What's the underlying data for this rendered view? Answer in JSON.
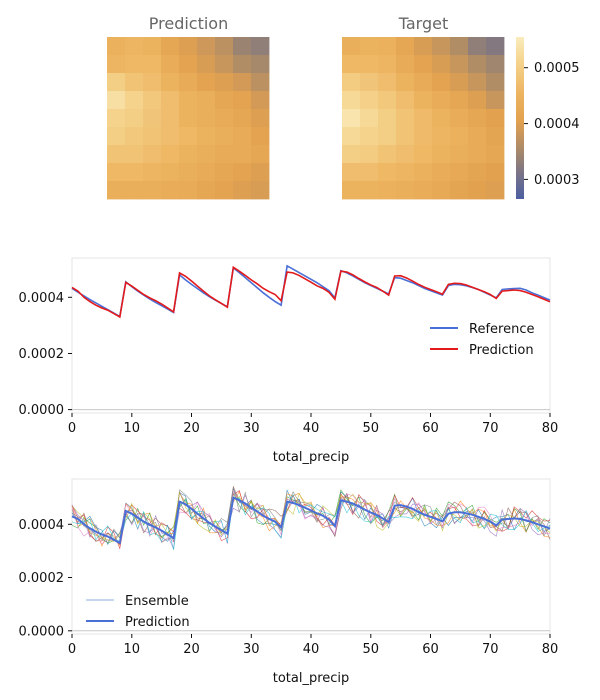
{
  "colors": {
    "reference": "#4a6fd6",
    "prediction_line": "#e31a1c",
    "ensemble_prediction": "#4a6fd6",
    "frame": "#dddddd"
  },
  "chart_data": [
    {
      "type": "heatmap",
      "title": "Prediction",
      "grid": [
        [
          0.000445,
          0.000455,
          0.00045,
          0.00042,
          0.0004,
          0.000385,
          0.00037,
          0.00034,
          0.00033
        ],
        [
          0.000455,
          0.00046,
          0.00046,
          0.000435,
          0.00041,
          0.000395,
          0.00038,
          0.00036,
          0.00035
        ],
        [
          0.0005,
          0.00048,
          0.00047,
          0.00045,
          0.00043,
          0.00041,
          0.0004,
          0.00039,
          0.00037
        ],
        [
          0.00053,
          0.00051,
          0.00049,
          0.00047,
          0.00045,
          0.00044,
          0.00042,
          0.00041,
          0.00039
        ],
        [
          0.00051,
          0.0005,
          0.000485,
          0.00047,
          0.00045,
          0.00044,
          0.00043,
          0.00042,
          0.0004
        ],
        [
          0.0005,
          0.00049,
          0.00048,
          0.00047,
          0.00046,
          0.00045,
          0.00044,
          0.00043,
          0.00041
        ],
        [
          0.00048,
          0.00048,
          0.00047,
          0.00046,
          0.00045,
          0.00044,
          0.00043,
          0.00043,
          0.00042
        ],
        [
          0.00046,
          0.00046,
          0.000455,
          0.00045,
          0.00044,
          0.00043,
          0.00042,
          0.00041,
          0.0004
        ],
        [
          0.00044,
          0.00044,
          0.00044,
          0.000435,
          0.00043,
          0.00042,
          0.00041,
          0.0004,
          0.000395
        ]
      ]
    },
    {
      "type": "heatmap",
      "title": "Target",
      "grid": [
        [
          0.00044,
          0.00045,
          0.000445,
          0.00042,
          0.000395,
          0.00038,
          0.00036,
          0.00033,
          0.00032
        ],
        [
          0.00046,
          0.00046,
          0.000455,
          0.00043,
          0.00041,
          0.000395,
          0.00038,
          0.00036,
          0.000345
        ],
        [
          0.000495,
          0.000485,
          0.00047,
          0.00045,
          0.00043,
          0.00041,
          0.000395,
          0.00038,
          0.00036
        ],
        [
          0.00052,
          0.000505,
          0.00049,
          0.00047,
          0.00045,
          0.000435,
          0.00042,
          0.0004,
          0.00038
        ],
        [
          0.00054,
          0.00052,
          0.0005,
          0.00048,
          0.000465,
          0.00045,
          0.000435,
          0.00042,
          0.000405
        ],
        [
          0.00052,
          0.00051,
          0.0005,
          0.00048,
          0.000465,
          0.000455,
          0.000445,
          0.00043,
          0.000415
        ],
        [
          0.0005,
          0.000495,
          0.00048,
          0.00047,
          0.00046,
          0.00045,
          0.00044,
          0.00043,
          0.00042
        ],
        [
          0.00047,
          0.00047,
          0.00046,
          0.000455,
          0.000445,
          0.000435,
          0.000425,
          0.000415,
          0.000405
        ],
        [
          0.00045,
          0.00045,
          0.000445,
          0.00044,
          0.000435,
          0.000425,
          0.000415,
          0.000405,
          0.0004
        ]
      ]
    },
    {
      "type": "colorbar",
      "range": [
        0.000265,
        0.000555
      ],
      "ticks": [
        0.0003,
        0.0004,
        0.0005
      ],
      "tick_labels": [
        "0.0003",
        "0.0004",
        "0.0005"
      ]
    },
    {
      "type": "line",
      "xlabel": "total_precip",
      "xlim": [
        0,
        80
      ],
      "ylim": [
        -1.2e-05,
        0.00054
      ],
      "xticks": [
        0,
        10,
        20,
        30,
        40,
        50,
        60,
        70,
        80
      ],
      "xtick_labels": [
        "0",
        "10",
        "20",
        "30",
        "40",
        "50",
        "60",
        "70",
        "80"
      ],
      "yticks": [
        0,
        0.0002,
        0.0004
      ],
      "ytick_labels": [
        "0.0000",
        "0.0002",
        "0.0004"
      ],
      "legend": "center-right",
      "series": [
        {
          "name": "Reference",
          "x": [
            0,
            1,
            2,
            3,
            4,
            5,
            6,
            7,
            8,
            9,
            10,
            11,
            12,
            13,
            14,
            15,
            16,
            17,
            18,
            19,
            20,
            21,
            22,
            23,
            24,
            25,
            26,
            27,
            28,
            29,
            30,
            31,
            32,
            33,
            34,
            35,
            36,
            37,
            38,
            39,
            40,
            41,
            42,
            43,
            44,
            45,
            46,
            47,
            48,
            49,
            50,
            51,
            52,
            53,
            54,
            55,
            56,
            57,
            58,
            59,
            60,
            61,
            62,
            63,
            64,
            65,
            66,
            67,
            68,
            69,
            70,
            71,
            72,
            73,
            74,
            75,
            76,
            77,
            78,
            79,
            80
          ],
          "y": [
            0.000432,
            0.000418,
            0.000405,
            0.000392,
            0.00038,
            0.000368,
            0.000356,
            0.000344,
            0.000332,
            0.000455,
            0.000438,
            0.000422,
            0.000408,
            0.000394,
            0.000382,
            0.00037,
            0.000358,
            0.000346,
            0.00048,
            0.000462,
            0.000446,
            0.000431,
            0.000416,
            0.000402,
            0.00039,
            0.000378,
            0.000366,
            0.000505,
            0.000488,
            0.00047,
            0.000452,
            0.000434,
            0.000416,
            0.0004,
            0.000385,
            0.000372,
            0.000512,
            0.0005,
            0.000488,
            0.000476,
            0.000464,
            0.000452,
            0.000438,
            0.000424,
            0.000398,
            0.000495,
            0.000487,
            0.000476,
            0.000464,
            0.000452,
            0.000442,
            0.000432,
            0.000422,
            0.000412,
            0.00047,
            0.000468,
            0.00046,
            0.000452,
            0.000442,
            0.000432,
            0.000424,
            0.000416,
            0.000408,
            0.000442,
            0.000446,
            0.000445,
            0.000441,
            0.000435,
            0.000428,
            0.000418,
            0.000408,
            0.000398,
            0.000428,
            0.00043,
            0.000431,
            0.000432,
            0.000426,
            0.000416,
            0.000408,
            0.000399,
            0.00039
          ]
        },
        {
          "name": "Prediction",
          "x": [
            0,
            1,
            2,
            3,
            4,
            5,
            6,
            7,
            8,
            9,
            10,
            11,
            12,
            13,
            14,
            15,
            16,
            17,
            18,
            19,
            20,
            21,
            22,
            23,
            24,
            25,
            26,
            27,
            28,
            29,
            30,
            31,
            32,
            33,
            34,
            35,
            36,
            37,
            38,
            39,
            40,
            41,
            42,
            43,
            44,
            45,
            46,
            47,
            48,
            49,
            50,
            51,
            52,
            53,
            54,
            55,
            56,
            57,
            58,
            59,
            60,
            61,
            62,
            63,
            64,
            65,
            66,
            67,
            68,
            69,
            70,
            71,
            72,
            73,
            74,
            75,
            76,
            77,
            78,
            79,
            80
          ],
          "y": [
            0.000435,
            0.000422,
            0.0004,
            0.000385,
            0.000372,
            0.000362,
            0.000354,
            0.000342,
            0.00033,
            0.000453,
            0.00044,
            0.000425,
            0.00041,
            0.000398,
            0.000388,
            0.000376,
            0.000362,
            0.000348,
            0.000487,
            0.000475,
            0.000458,
            0.00044,
            0.000422,
            0.000405,
            0.000391,
            0.000378,
            0.000365,
            0.000507,
            0.000493,
            0.000478,
            0.000462,
            0.000448,
            0.000432,
            0.00042,
            0.00041,
            0.000388,
            0.00049,
            0.000487,
            0.000478,
            0.000466,
            0.000454,
            0.000441,
            0.000432,
            0.000418,
            0.000393,
            0.000493,
            0.00049,
            0.00048,
            0.000467,
            0.000455,
            0.000444,
            0.000435,
            0.000422,
            0.000408,
            0.000476,
            0.000477,
            0.000469,
            0.000458,
            0.000446,
            0.000436,
            0.000428,
            0.00042,
            0.000411,
            0.000446,
            0.00045,
            0.000449,
            0.000444,
            0.000436,
            0.000428,
            0.00042,
            0.00041,
            0.000396,
            0.000422,
            0.000424,
            0.000426,
            0.000424,
            0.000418,
            0.00041,
            0.000402,
            0.000393,
            0.000384
          ]
        }
      ]
    },
    {
      "type": "line",
      "xlabel": "total_precip",
      "xlim": [
        0,
        80
      ],
      "ylim": [
        -1.2e-05,
        0.00057
      ],
      "xticks": [
        0,
        10,
        20,
        30,
        40,
        50,
        60,
        70,
        80
      ],
      "xtick_labels": [
        "0",
        "10",
        "20",
        "30",
        "40",
        "50",
        "60",
        "70",
        "80"
      ],
      "yticks": [
        0,
        0.0002,
        0.0004
      ],
      "ytick_labels": [
        "0.0000",
        "0.0002",
        "0.0004"
      ],
      "legend": "lower-left",
      "ensemble_members": 10,
      "ensemble_amplitude": 4.5e-05,
      "ensemble_colors": [
        "#1f77b4",
        "#ff7f0e",
        "#2ca02c",
        "#d62728",
        "#9467bd",
        "#8c564b",
        "#e377c2",
        "#7f7f7f",
        "#bcbd22",
        "#17becf"
      ],
      "series": [
        {
          "name": "Ensemble",
          "style": "thin multi-colored member lines"
        },
        {
          "name": "Prediction",
          "x": [
            0,
            1,
            2,
            3,
            4,
            5,
            6,
            7,
            8,
            9,
            10,
            11,
            12,
            13,
            14,
            15,
            16,
            17,
            18,
            19,
            20,
            21,
            22,
            23,
            24,
            25,
            26,
            27,
            28,
            29,
            30,
            31,
            32,
            33,
            34,
            35,
            36,
            37,
            38,
            39,
            40,
            41,
            42,
            43,
            44,
            45,
            46,
            47,
            48,
            49,
            50,
            51,
            52,
            53,
            54,
            55,
            56,
            57,
            58,
            59,
            60,
            61,
            62,
            63,
            64,
            65,
            66,
            67,
            68,
            69,
            70,
            71,
            72,
            73,
            74,
            75,
            76,
            77,
            78,
            79,
            80
          ],
          "y": [
            0.00043,
            0.00042,
            0.0004,
            0.000385,
            0.000372,
            0.000362,
            0.000354,
            0.000342,
            0.00033,
            0.00045,
            0.00044,
            0.000425,
            0.00041,
            0.000398,
            0.000388,
            0.000376,
            0.000362,
            0.000348,
            0.000485,
            0.000475,
            0.000458,
            0.00044,
            0.000422,
            0.000405,
            0.000391,
            0.000378,
            0.000365,
            0.0005,
            0.00049,
            0.000478,
            0.000462,
            0.000448,
            0.000432,
            0.00042,
            0.00041,
            0.000388,
            0.000485,
            0.00048,
            0.000472,
            0.000462,
            0.000452,
            0.000441,
            0.000432,
            0.000418,
            0.000393,
            0.00049,
            0.000485,
            0.000478,
            0.000467,
            0.000455,
            0.000444,
            0.000435,
            0.000422,
            0.000408,
            0.00047,
            0.000472,
            0.000466,
            0.000458,
            0.000446,
            0.000436,
            0.000428,
            0.00042,
            0.000411,
            0.00044,
            0.000445,
            0.000445,
            0.000441,
            0.000436,
            0.000428,
            0.00042,
            0.00041,
            0.000396,
            0.000418,
            0.00042,
            0.000422,
            0.00042,
            0.000415,
            0.000408,
            0.0004,
            0.000392,
            0.000384
          ]
        }
      ]
    }
  ]
}
